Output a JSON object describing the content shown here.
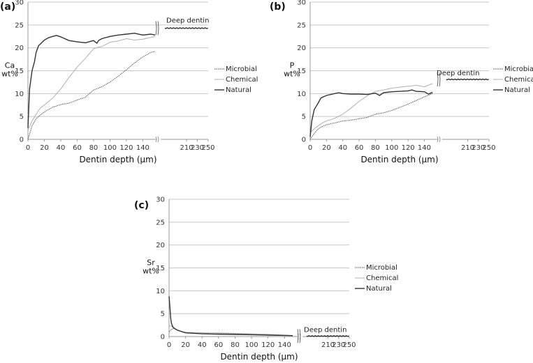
{
  "chart_data": [
    {
      "id": "a",
      "type": "line",
      "panel_label": "(a)",
      "title": "",
      "ylabel_line1": "Ca",
      "ylabel_line2": "wt%",
      "xlabel": "Dentin depth (μm)",
      "ylim": [
        0,
        30
      ],
      "yticks": [
        0,
        5,
        10,
        15,
        20,
        25,
        30
      ],
      "xticks_left": [
        0,
        20,
        40,
        60,
        80,
        100,
        120,
        140
      ],
      "xticks_right": [
        210,
        230,
        250
      ],
      "x_break": true,
      "grid": true,
      "legend": [
        "Microbial",
        "Chemical",
        "Natural"
      ],
      "legend_position": "right",
      "annotation": "Deep dentin",
      "series": [
        {
          "name": "Microbial",
          "style": "dotted",
          "x": [
            0,
            5,
            10,
            15,
            20,
            30,
            40,
            50,
            60,
            70,
            80,
            90,
            100,
            110,
            120,
            130,
            140,
            150,
            155
          ],
          "y": [
            0,
            3,
            4.5,
            5.3,
            6,
            7,
            7.6,
            7.9,
            8.6,
            9.2,
            10.8,
            11.5,
            12.5,
            13.8,
            15.2,
            16.7,
            18,
            19,
            19.2
          ]
        },
        {
          "name": "Chemical",
          "style": "light",
          "x": [
            0,
            5,
            10,
            15,
            20,
            30,
            40,
            50,
            60,
            70,
            80,
            85,
            90,
            100,
            110,
            120,
            130,
            140,
            150,
            155
          ],
          "y": [
            2,
            4,
            5.5,
            6.8,
            7.5,
            9,
            11,
            13.5,
            15.8,
            17.7,
            19.8,
            20.1,
            20.3,
            21.2,
            21.5,
            22,
            21.7,
            21.9,
            22.3,
            22.5
          ]
        },
        {
          "name": "Natural",
          "style": "dark",
          "x": [
            0,
            2,
            5,
            8,
            10,
            13,
            15,
            20,
            25,
            30,
            35,
            40,
            50,
            60,
            70,
            80,
            84,
            86,
            90,
            100,
            110,
            120,
            130,
            140,
            150,
            155
          ],
          "y": [
            2.5,
            11,
            15,
            17,
            19,
            20.5,
            20.8,
            21.7,
            22.2,
            22.5,
            22.7,
            22.4,
            21.6,
            21.3,
            21.1,
            21.6,
            21,
            21.6,
            22,
            22.5,
            22.8,
            23,
            23.2,
            22.8,
            23,
            22.8
          ]
        },
        {
          "name": "Deep dentin",
          "style": "dark",
          "x": [
            170,
            250
          ],
          "y": [
            24.3,
            24.3
          ]
        }
      ]
    },
    {
      "id": "b",
      "type": "line",
      "panel_label": "(b)",
      "title": "",
      "ylabel_line1": "P",
      "ylabel_line2": "wt%",
      "xlabel": "Dentin depth (μm)",
      "ylim": [
        0,
        30
      ],
      "yticks": [
        0,
        5,
        10,
        15,
        20,
        25,
        30
      ],
      "xticks_left": [
        0,
        20,
        40,
        60,
        80,
        100,
        120,
        140
      ],
      "xticks_right": [
        210,
        230,
        250
      ],
      "x_break": true,
      "grid": true,
      "legend": [
        "Microbial",
        "Chemical",
        "Natural"
      ],
      "legend_position": "right",
      "annotation": "Deep dentin",
      "series": [
        {
          "name": "Microbial",
          "style": "dotted",
          "x": [
            0,
            5,
            10,
            15,
            20,
            30,
            40,
            50,
            60,
            70,
            80,
            90,
            100,
            110,
            120,
            130,
            140,
            150
          ],
          "y": [
            0,
            1.3,
            2.3,
            2.8,
            3.2,
            3.6,
            4,
            4.2,
            4.5,
            4.8,
            5.5,
            5.8,
            6.3,
            7,
            7.7,
            8.5,
            9.3,
            10
          ]
        },
        {
          "name": "Chemical",
          "style": "light",
          "x": [
            0,
            5,
            10,
            15,
            20,
            30,
            40,
            50,
            60,
            70,
            80,
            90,
            100,
            110,
            120,
            130,
            140,
            150
          ],
          "y": [
            1.5,
            2.3,
            3,
            3.6,
            4,
            4.6,
            5.5,
            6.8,
            8.3,
            9.5,
            10.5,
            10.8,
            11.2,
            11.4,
            11.6,
            11.8,
            11.5,
            12.2
          ]
        },
        {
          "name": "Natural",
          "style": "dark",
          "x": [
            0,
            2,
            5,
            10,
            13,
            15,
            20,
            30,
            35,
            40,
            50,
            60,
            70,
            80,
            85,
            90,
            100,
            110,
            120,
            125,
            130,
            140,
            145,
            150
          ],
          "y": [
            0.5,
            4,
            6.5,
            8,
            9,
            9.2,
            9.6,
            10,
            10.2,
            10,
            9.9,
            9.9,
            9.8,
            10.1,
            9.6,
            10.2,
            10.4,
            10.5,
            10.6,
            10.8,
            10.5,
            10.4,
            9.9,
            10.3
          ]
        },
        {
          "name": "Deep dentin",
          "style": "dark",
          "x": [
            170,
            250
          ],
          "y": [
            13.1,
            13.1
          ]
        }
      ]
    },
    {
      "id": "c",
      "type": "line",
      "panel_label": "(c)",
      "title": "",
      "ylabel_line1": "Sr",
      "ylabel_line2": "wt%",
      "xlabel": "Dentin depth (μm)",
      "ylim": [
        0,
        30
      ],
      "yticks": [
        0,
        5,
        10,
        15,
        20,
        25,
        30
      ],
      "xticks_left": [
        0,
        20,
        40,
        60,
        80,
        100,
        120,
        140
      ],
      "xticks_right": [
        210,
        230,
        250
      ],
      "x_break": true,
      "grid": true,
      "legend": [
        "Microbial",
        "Chemical",
        "Natural"
      ],
      "legend_position": "right",
      "annotation": "Deep dentin",
      "series": [
        {
          "name": "Microbial",
          "style": "dotted",
          "x": [
            0,
            2,
            5,
            8,
            10,
            15,
            20,
            40,
            60,
            80,
            100,
            120,
            140,
            150
          ],
          "y": [
            1,
            1.4,
            1.8,
            1.6,
            1.4,
            1.1,
            0.9,
            0.8,
            0.7,
            0.6,
            0.5,
            0.4,
            0.3,
            0.2
          ]
        },
        {
          "name": "Chemical",
          "style": "light",
          "x": [
            0,
            2,
            5,
            8,
            10,
            15,
            20,
            40,
            60,
            80,
            100,
            120,
            140,
            150
          ],
          "y": [
            2.3,
            2.3,
            2,
            1.7,
            1.4,
            1.1,
            0.9,
            0.8,
            0.8,
            0.7,
            0.6,
            0.5,
            0.3,
            0.2
          ]
        },
        {
          "name": "Natural",
          "style": "dark",
          "x": [
            0,
            1,
            2,
            3,
            5,
            8,
            10,
            15,
            20,
            40,
            60,
            80,
            100,
            120,
            140,
            150
          ],
          "y": [
            8.8,
            6.5,
            4,
            2.8,
            2,
            1.6,
            1.4,
            1.1,
            0.8,
            0.6,
            0.5,
            0.45,
            0.4,
            0.3,
            0.25,
            0.2
          ]
        },
        {
          "name": "Deep dentin",
          "style": "dark",
          "x": [
            170,
            250
          ],
          "y": [
            0.1,
            0.1
          ]
        }
      ]
    }
  ]
}
